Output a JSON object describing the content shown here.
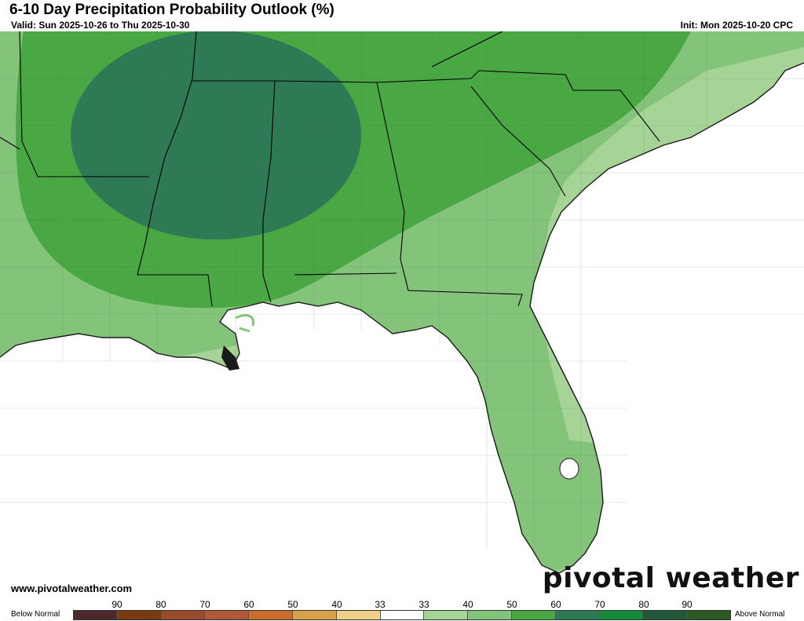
{
  "header": {
    "title": "6-10 Day Precipitation Probability Outlook (%)",
    "valid": "Valid: Sun 2025-10-26 to Thu 2025-10-30",
    "init": "Init: Mon 2025-10-20 CPC"
  },
  "footer": {
    "website": "www.pivotalweather.com",
    "brand": "pivotal weather"
  },
  "legend": {
    "below_label": "Below Normal",
    "above_label": "Above Normal",
    "ticks": [
      "90",
      "80",
      "70",
      "60",
      "50",
      "40",
      "33",
      "33",
      "40",
      "50",
      "60",
      "70",
      "80",
      "90"
    ],
    "swatch_colors": [
      "#4a2a2a",
      "#7a3b12",
      "#9c4a2e",
      "#b0593a",
      "#c86d2e",
      "#d9a24a",
      "#f0d08a",
      "#ffffff",
      "#a6d496",
      "#84c47a",
      "#4aa844",
      "#2e7a55",
      "#168a3c",
      "#23573a",
      "#2d5a22"
    ]
  },
  "map": {
    "category_colors": {
      "above_33_40": "#a6d496",
      "above_40_50": "#84c47a",
      "above_50_60": "#4aa844",
      "above_60_70": "#2e7a55"
    },
    "land_color": "#ffffff",
    "water_color": "#ffffff",
    "border_color": "#000000"
  }
}
